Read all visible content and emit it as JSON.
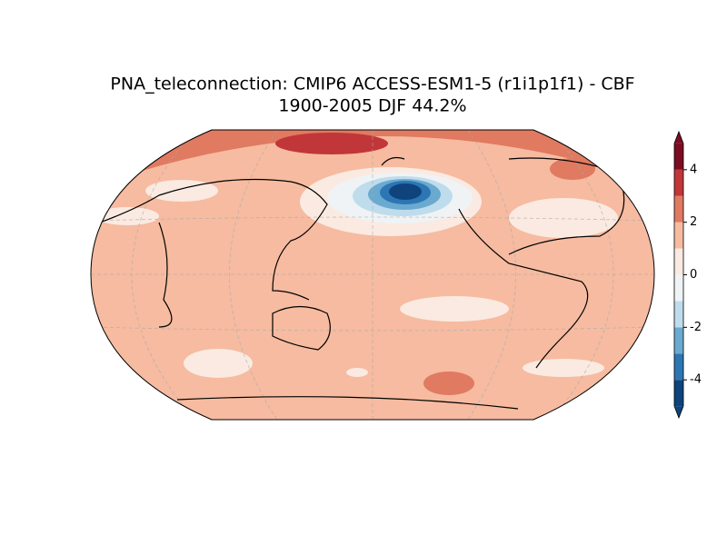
{
  "title": [
    "PNA_teleconnection: CMIP6 ACCESS-ESM1-5 (r1i1p1f1) - CBF",
    "1900-2005 DJF 44.2%"
  ],
  "colorbar": {
    "lim": [
      -5.1,
      5.1
    ],
    "levels": [
      -5,
      -4,
      -3,
      -2,
      -1,
      0,
      1,
      2,
      3,
      4,
      5
    ],
    "colors": [
      "#0f437b",
      "#2d76b4",
      "#6aaad0",
      "#bfdcec",
      "#eff3f5",
      "#faeae1",
      "#f6bba0",
      "#e07a61",
      "#c13639",
      "#7b0c22"
    ],
    "ticks": [
      -4,
      -2,
      0,
      2,
      4
    ]
  }
}
